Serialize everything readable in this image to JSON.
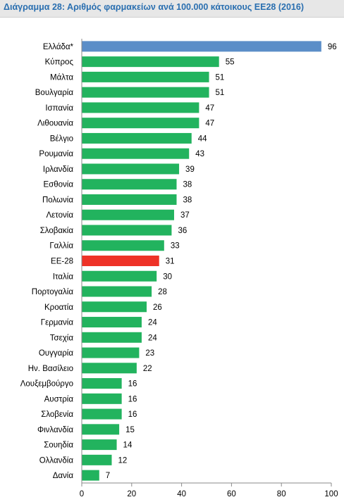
{
  "title": "Διάγραμμα 28: Αριθμός φαρμακείων ανά 100.000 κάτοικους ΕΕ28 (2016)",
  "colors": {
    "default": "#22b35e",
    "highlight_greece": "#5b8ec8",
    "highlight_eu": "#ee3227"
  },
  "chart_data": {
    "type": "bar",
    "orientation": "horizontal",
    "categories": [
      "Ελλάδα*",
      "Κύπρος",
      "Μάλτα",
      "Βουλγαρία",
      "Ισπανία",
      "Λιθουανία",
      "Βέλγιο",
      "Ρουμανία",
      "Ιρλανδία",
      "Εσθονία",
      "Πολωνία",
      "Λετονία",
      "Σλοβακία",
      "Γαλλία",
      "ΕΕ-28",
      "Ιταλία",
      "Πορτογαλία",
      "Κροατία",
      "Γερμανία",
      "Τσεχία",
      "Ουγγαρία",
      "Ην. Βασίλειο",
      "Λουξεμβούργο",
      "Αυστρία",
      "Σλοβενία",
      "Φινλανδία",
      "Σουηδία",
      "Ολλανδία",
      "Δανία"
    ],
    "values": [
      96,
      55,
      51,
      51,
      47,
      47,
      44,
      43,
      39,
      38,
      38,
      37,
      36,
      33,
      31,
      30,
      28,
      26,
      24,
      24,
      23,
      22,
      16,
      16,
      16,
      15,
      14,
      12,
      7
    ],
    "bar_colors": [
      "#5b8ec8",
      "#22b35e",
      "#22b35e",
      "#22b35e",
      "#22b35e",
      "#22b35e",
      "#22b35e",
      "#22b35e",
      "#22b35e",
      "#22b35e",
      "#22b35e",
      "#22b35e",
      "#22b35e",
      "#22b35e",
      "#ee3227",
      "#22b35e",
      "#22b35e",
      "#22b35e",
      "#22b35e",
      "#22b35e",
      "#22b35e",
      "#22b35e",
      "#22b35e",
      "#22b35e",
      "#22b35e",
      "#22b35e",
      "#22b35e",
      "#22b35e",
      "#22b35e"
    ],
    "xlim": [
      0,
      100
    ],
    "xticks": [
      0,
      20,
      40,
      60,
      80,
      100
    ],
    "grid": false,
    "data_labels": true
  }
}
